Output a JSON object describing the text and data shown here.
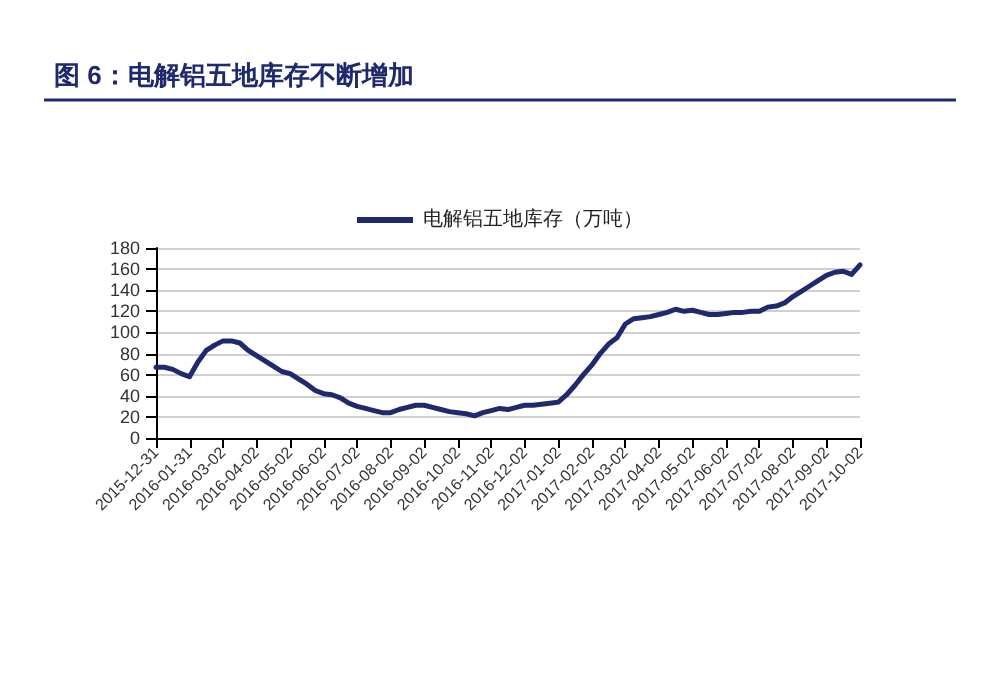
{
  "chart_data": {
    "type": "line",
    "title": "图 6：电解铝五地库存不断增加",
    "categories": [
      "2015-12-31",
      null,
      null,
      null,
      "2016-01-31",
      null,
      null,
      null,
      "2016-03-02",
      null,
      null,
      null,
      "2016-04-02",
      null,
      null,
      null,
      "2016-05-02",
      null,
      null,
      null,
      "2016-06-02",
      null,
      null,
      null,
      "2016-07-02",
      null,
      null,
      null,
      "2016-08-02",
      null,
      null,
      null,
      "2016-09-02",
      null,
      null,
      null,
      "2016-10-02",
      null,
      null,
      null,
      "2016-11-02",
      null,
      null,
      null,
      "2016-12-02",
      null,
      null,
      null,
      "2017-01-02",
      null,
      null,
      null,
      "2017-02-02",
      null,
      null,
      null,
      "2017-03-02",
      null,
      null,
      null,
      "2017-04-02",
      null,
      null,
      null,
      "2017-05-02",
      null,
      null,
      null,
      "2017-06-02",
      null,
      null,
      null,
      "2017-07-02",
      null,
      null,
      null,
      "2017-08-02",
      null,
      null,
      null,
      "2017-09-02",
      null,
      null,
      null,
      "2017-10-02"
    ],
    "series": [
      {
        "name": "电解铝五地库存（万吨）",
        "color": "#1f2a6e",
        "values": [
          67,
          67,
          65,
          61,
          58,
          72,
          83,
          88,
          92,
          92,
          90,
          83,
          78,
          73,
          68,
          63,
          61,
          56,
          51,
          45,
          42,
          41,
          38,
          33,
          30,
          28,
          26,
          24,
          24,
          27,
          29,
          31,
          31,
          29,
          27,
          25,
          24,
          23,
          21,
          24,
          26,
          28,
          27,
          29,
          31,
          31,
          32,
          33,
          34,
          41,
          50,
          60,
          69,
          80,
          89,
          95,
          108,
          113,
          114,
          115,
          117,
          119,
          122,
          120,
          121,
          119,
          117,
          117,
          118,
          119,
          119,
          120,
          120,
          124,
          125,
          128,
          134,
          139,
          144,
          149,
          154,
          157,
          158,
          155,
          164
        ]
      }
    ],
    "ylim": [
      0,
      180
    ],
    "yticks": [
      0,
      20,
      40,
      60,
      80,
      100,
      120,
      140,
      160,
      180
    ],
    "grid": "y",
    "legend": "top",
    "marker": "none",
    "line_style": "solid"
  }
}
